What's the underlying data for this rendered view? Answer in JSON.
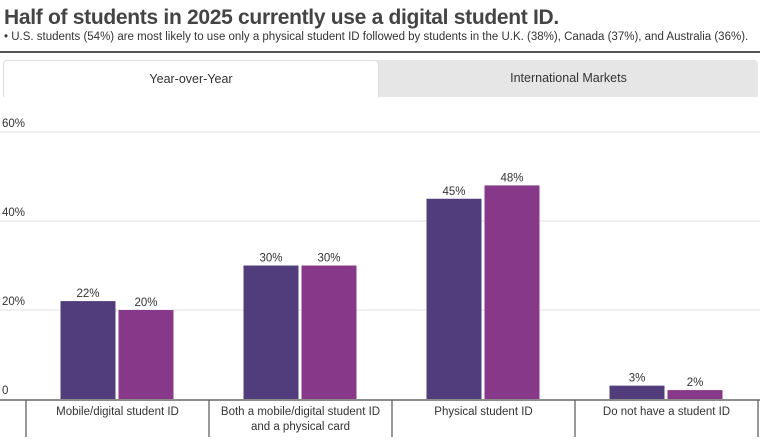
{
  "title": "Half of students in 2025 currently use a digital student ID.",
  "subtitle": "• U.S. students (54%) are most likely to use only a physical student ID followed by students in the U.K. (38%), Canada (37%), and Australia (36%).",
  "tabs": [
    {
      "label": "Year-over-Year",
      "active": true
    },
    {
      "label": "International Markets",
      "active": false
    }
  ],
  "chart_data": {
    "type": "bar",
    "categories": [
      "Mobile/digital student ID",
      "Both a mobile/digital student ID\nand a physical card",
      "Physical student ID",
      "Do not have a student ID"
    ],
    "series": [
      {
        "values": [
          22,
          30,
          45,
          3
        ],
        "color": "#523d7c"
      },
      {
        "values": [
          20,
          30,
          48,
          2
        ],
        "color": "#883888"
      }
    ],
    "data_labels": [
      [
        "22%",
        "30%",
        "45%",
        "3%"
      ],
      [
        "20%",
        "30%",
        "48%",
        "2%"
      ]
    ],
    "yticks": [
      {
        "value": 0,
        "label": "0"
      },
      {
        "value": 20,
        "label": "20%"
      },
      {
        "value": 40,
        "label": "40%"
      },
      {
        "value": 60,
        "label": "60%"
      }
    ],
    "ylim": [
      0,
      60
    ],
    "grid": true,
    "legend": "none"
  }
}
